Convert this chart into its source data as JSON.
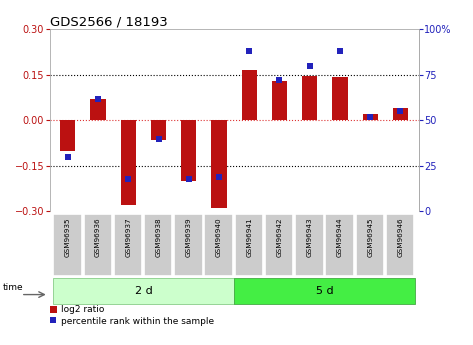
{
  "title": "GDS2566 / 18193",
  "samples": [
    "GSM96935",
    "GSM96936",
    "GSM96937",
    "GSM96938",
    "GSM96939",
    "GSM96940",
    "GSM96941",
    "GSM96942",
    "GSM96943",
    "GSM96944",
    "GSM96945",
    "GSM96946"
  ],
  "log2_ratio": [
    -0.1,
    0.07,
    -0.28,
    -0.065,
    -0.2,
    -0.29,
    0.165,
    0.13,
    0.145,
    0.143,
    0.02,
    0.04
  ],
  "percentile_rank": [
    30,
    62,
    18,
    40,
    18,
    19,
    88,
    72,
    80,
    88,
    52,
    55
  ],
  "group1_label": "2 d",
  "group2_label": "5 d",
  "group1_count": 6,
  "group2_count": 6,
  "ylim": [
    -0.3,
    0.3
  ],
  "y2lim": [
    0,
    100
  ],
  "yticks_left": [
    -0.3,
    -0.15,
    0.0,
    0.15,
    0.3
  ],
  "yticks_right": [
    0,
    25,
    50,
    75,
    100
  ],
  "bar_color": "#bb1111",
  "dot_color": "#2222bb",
  "group1_color": "#ccffcc",
  "group2_color": "#44ee44",
  "sample_bg_color": "#cccccc",
  "legend_bar_label": "log2 ratio",
  "legend_dot_label": "percentile rank within the sample",
  "time_label": "time",
  "dotted_line_color": "#000000",
  "zero_line_color": "#dd3333",
  "fig_width": 4.73,
  "fig_height": 3.45,
  "dpi": 100
}
